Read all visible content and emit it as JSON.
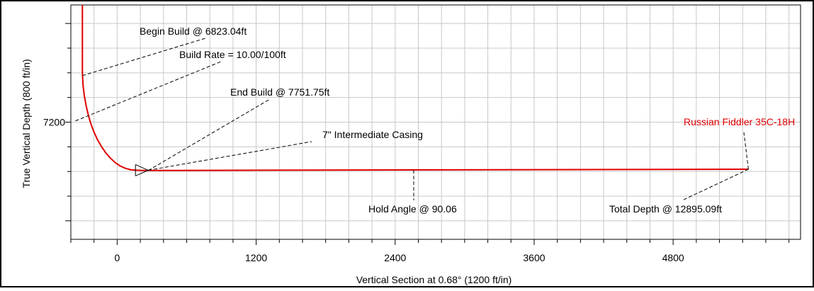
{
  "chart_data": {
    "type": "line",
    "title": "",
    "xlabel": "Vertical Section at 0.68° (1200 ft/in)",
    "ylabel": "True Vertical Depth (800 ft/in)",
    "x_ticks": [
      {
        "value": 0,
        "label": "0"
      },
      {
        "value": 1200,
        "label": "1200"
      },
      {
        "value": 2400,
        "label": "2400"
      },
      {
        "value": 3600,
        "label": "3600"
      },
      {
        "value": 4800,
        "label": "4800"
      }
    ],
    "y_ticks": [
      {
        "value": 7200,
        "label": "7200"
      }
    ],
    "xlim": [
      -400,
      5900
    ],
    "ylim": [
      8150,
      6250
    ],
    "grid": true,
    "series": [
      {
        "name": "Russian Fiddler 35C-18H",
        "color": "#e00000",
        "x": [
          -300,
          -300,
          -299,
          -294,
          -283,
          -268,
          -249,
          -226,
          -199,
          -168,
          -133,
          -96,
          -56,
          -16,
          27,
          73,
          120,
          169,
          218,
          268,
          5450
        ],
        "y": [
          6250,
          6800,
          6823,
          6906,
          6988,
          7067,
          7143,
          7216,
          7284,
          7346,
          7402,
          7452,
          7494,
          7529,
          7556,
          7575,
          7587,
          7590,
          7592,
          7592,
          7582
        ]
      }
    ],
    "annotations": [
      {
        "id": "begin-build",
        "text": "Begin Build @ 6823.04ft",
        "point": {
          "x": -300,
          "y": 6823
        }
      },
      {
        "id": "build-rate",
        "text": "Build Rate = 10.00/100ft",
        "point": {
          "x": -360,
          "y": 7190
        }
      },
      {
        "id": "end-build",
        "text": "End Build @ 7751.75ft",
        "point": {
          "x": 268,
          "y": 7592
        }
      },
      {
        "id": "casing",
        "text": "7\" Intermediate Casing",
        "point": {
          "x": 268,
          "y": 7590
        }
      },
      {
        "id": "hold-angle",
        "text": "Hold Angle @ 90.06",
        "point": {
          "x": 2560,
          "y": 7589
        }
      },
      {
        "id": "total-depth",
        "text": "Total Depth @ 12895.09ft",
        "point": {
          "x": 5450,
          "y": 7582
        }
      },
      {
        "id": "well-name",
        "text": "Russian Fiddler 35C-18H",
        "point": {
          "x": 5450,
          "y": 7582
        },
        "color": "#e00000"
      }
    ]
  }
}
